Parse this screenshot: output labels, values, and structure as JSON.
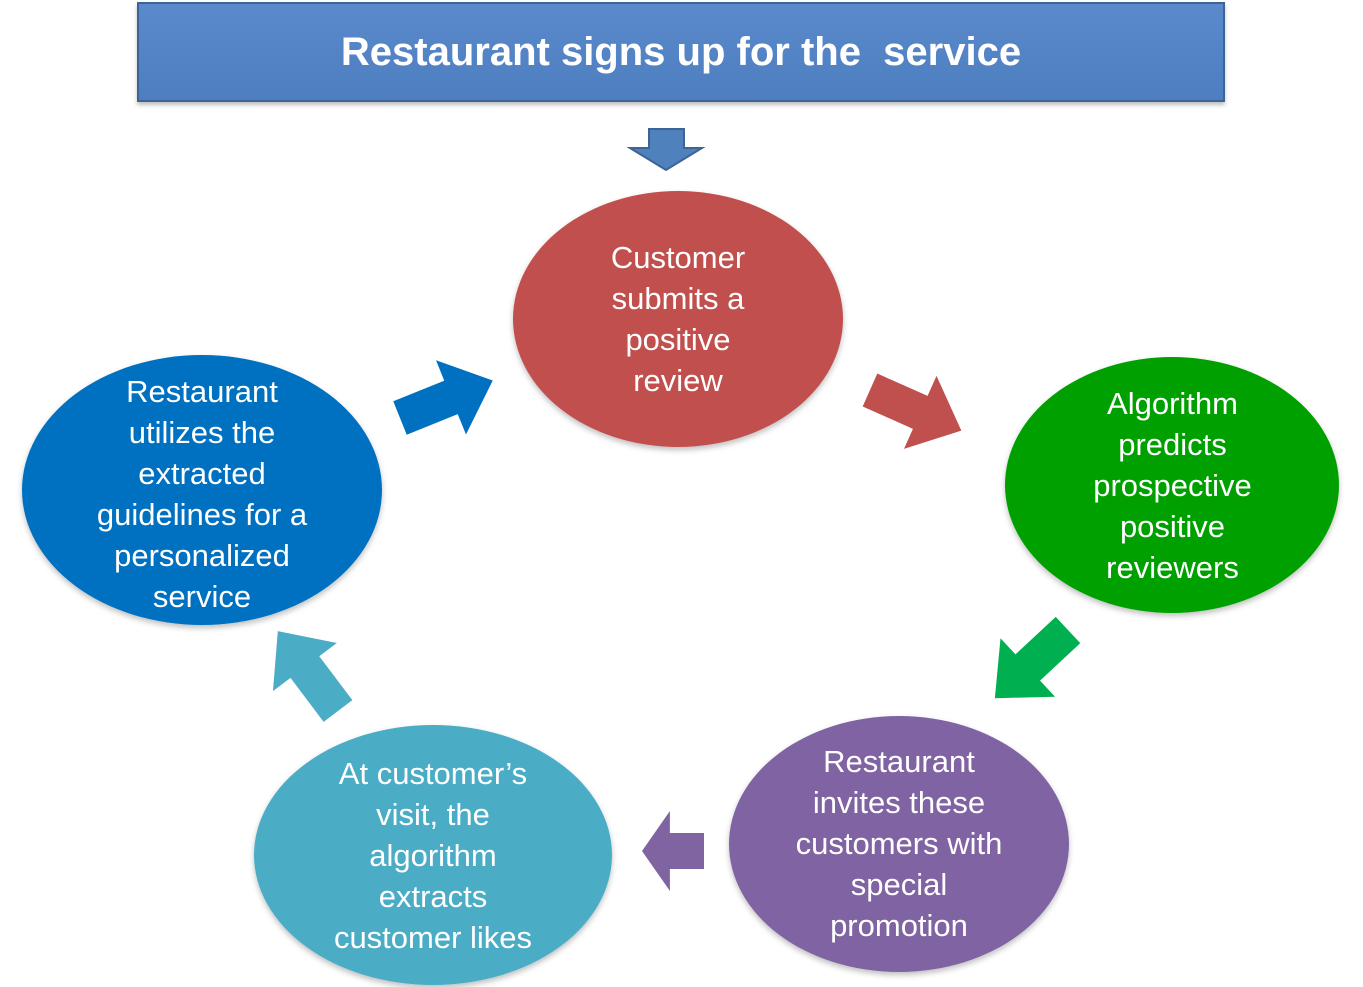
{
  "title": "Restaurant signs up for the  service",
  "colors": {
    "title_bg": "#4f81bd",
    "red": "#c0504d",
    "green": "#00a000",
    "purple": "#8064a2",
    "teal": "#4bacc6",
    "blue": "#0070c0",
    "arrow_green": "#00b050"
  },
  "nodes": [
    {
      "id": "submit-review",
      "text": "Customer\nsubmits a\npositive\nreview"
    },
    {
      "id": "predict",
      "text": "Algorithm\npredicts\nprospective\npositive\nreviewers"
    },
    {
      "id": "invite",
      "text": "Restaurant\ninvites these\ncustomers with\nspecial\npromotion"
    },
    {
      "id": "extract",
      "text": "At customer’s\nvisit, the\nalgorithm\nextracts\ncustomer likes"
    },
    {
      "id": "utilize",
      "text": "Restaurant\nutilizes the\nextracted\nguidelines for a\npersonalized\nservice"
    }
  ]
}
